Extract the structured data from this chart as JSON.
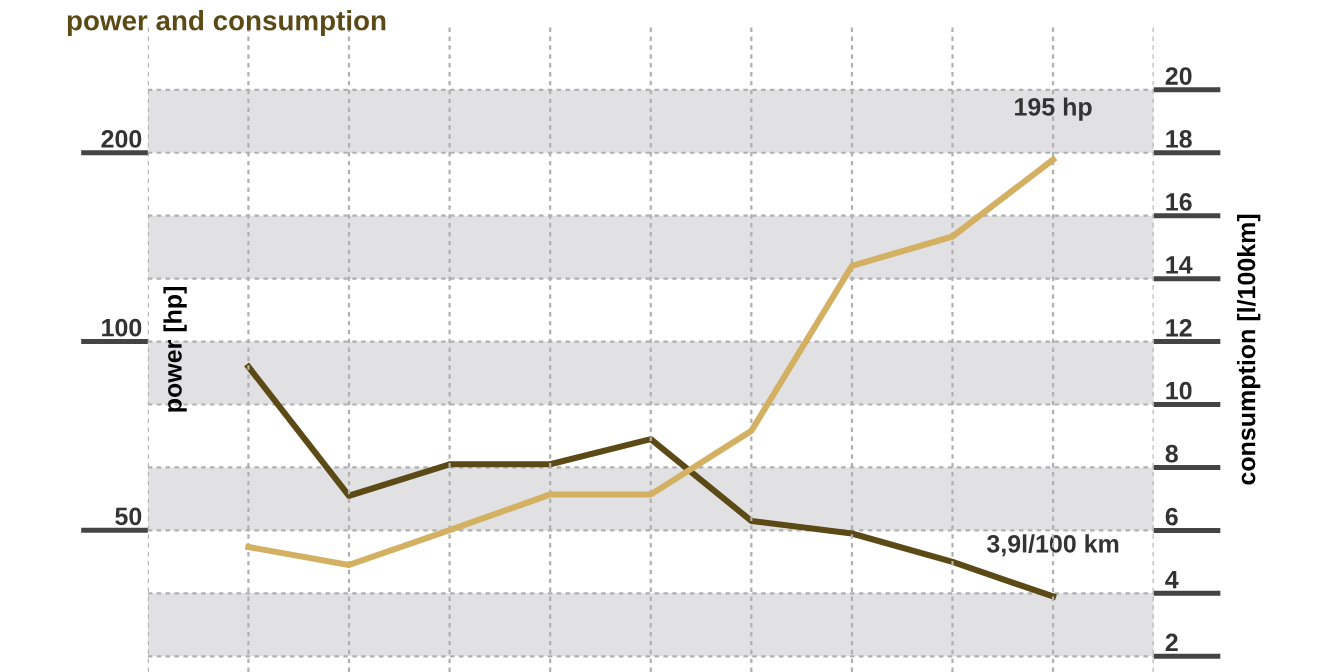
{
  "chart_data": {
    "type": "line",
    "title": "power and consumption",
    "ylabel": "power [hp]",
    "y2label": "consumption [l/100km]",
    "categories": [
      null,
      null,
      null,
      null,
      null,
      null,
      null,
      null,
      null
    ],
    "series": [
      {
        "color": "#d3b062",
        "values": [
          47,
          44,
          50,
          57,
          57,
          72,
          132,
          147,
          195
        ]
      },
      {
        "color": "#5b4a16",
        "axis": "y2",
        "values": [
          11.2,
          7.1,
          8.1,
          8.1,
          8.9,
          6.3,
          5.9,
          5.0,
          3.9
        ]
      }
    ],
    "log": "y",
    "ylim": [
      29.7,
      317.5
    ],
    "yticks": [
      50,
      100,
      200
    ],
    "y2lim": [
      1.5,
      22
    ],
    "y2ticks": [
      2,
      4,
      6,
      8,
      10,
      12,
      14,
      16,
      18,
      20
    ],
    "bands": [
      {
        "axis": "y2",
        "from": 2,
        "to": 4,
        "color": "#e1e1e3"
      },
      {
        "axis": "y2",
        "from": 6,
        "to": 8,
        "color": "#e1e1e3"
      },
      {
        "axis": "y2",
        "from": 10,
        "to": 12,
        "color": "#e1e1e3"
      },
      {
        "axis": "y2",
        "from": 14,
        "to": 16,
        "color": "#e1e1e3"
      },
      {
        "axis": "y2",
        "from": 18,
        "to": 20,
        "color": "#e1e1e3"
      }
    ],
    "annotations": [
      "195 hp",
      "3,9l/100 km"
    ],
    "grid": true,
    "tick_labels": "y"
  }
}
